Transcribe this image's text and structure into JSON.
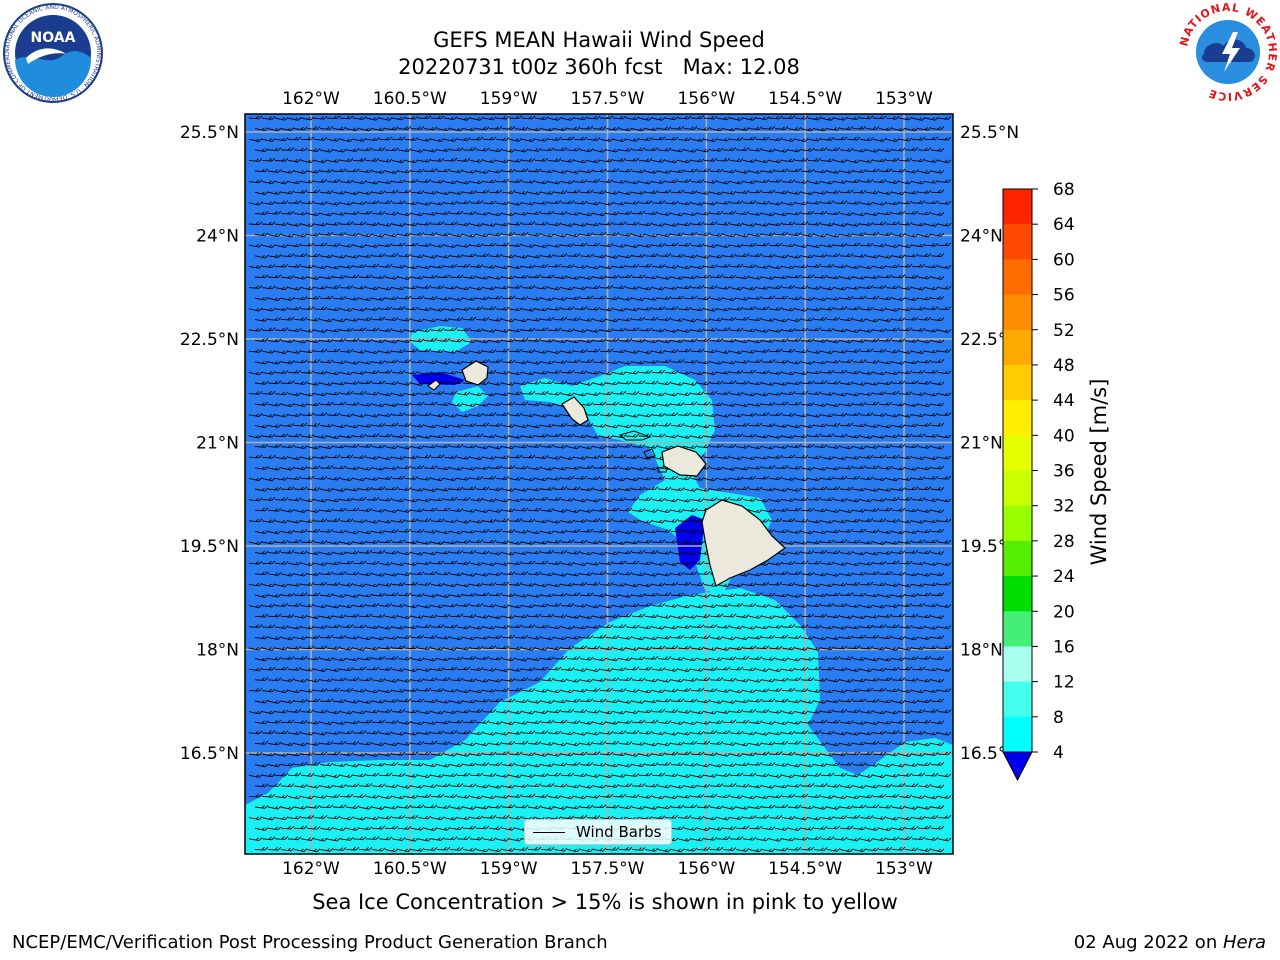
{
  "header": {
    "title_line1": "GEFS MEAN Hawaii Wind Speed",
    "title_line2": "20220731 t00z 360h fcst   Max: 12.08"
  },
  "logos": {
    "left_text": "NOAA",
    "left_ring": "NATIONAL OCEANIC AND ATMOSPHERIC ADMINISTRATION · U.S. DEPARTMENT OF COMMERCE",
    "right_ring": "NATIONAL WEATHER SERVICE"
  },
  "map": {
    "lon_labels": [
      "162°W",
      "160.5°W",
      "159°W",
      "157.5°W",
      "156°W",
      "154.5°W",
      "153°W"
    ],
    "lat_labels": [
      "25.5°N",
      "24°N",
      "22.5°N",
      "21°N",
      "19.5°N",
      "18°N",
      "16.5°N"
    ],
    "lon_values": [
      -162,
      -160.5,
      -159,
      -157.5,
      -156,
      -154.5,
      -153
    ],
    "lat_values": [
      25.5,
      24,
      22.5,
      21,
      19.5,
      18,
      16.5
    ],
    "ocean_color": "#2a7cf2",
    "light_color": "#19f1f4",
    "dark_color": "#0000ee",
    "land_color": "#ebe8dc",
    "grid_color": "#b0b0b0",
    "legend_label": "Wind Barbs"
  },
  "colorbar": {
    "label": "Wind Speed [m/s]",
    "ticks": [
      "68",
      "64",
      "60",
      "56",
      "52",
      "48",
      "44",
      "40",
      "36",
      "32",
      "28",
      "24",
      "20",
      "16",
      "12",
      "8",
      "4"
    ],
    "colors": [
      "#ff0000",
      "#ff2400",
      "#ff4800",
      "#ff6c00",
      "#ff8c00",
      "#ffaa00",
      "#ffcc00",
      "#ffee00",
      "#e6ff00",
      "#ccff00",
      "#99ff00",
      "#55ee00",
      "#00dd00",
      "#44ee77",
      "#aaffee",
      "#44ffee",
      "#00ffff",
      "#0077ff"
    ],
    "under_color": "#0000ee"
  },
  "caption": "Sea Ice Concentration > 15% is shown in pink to yellow",
  "footer": {
    "left": "NCEP/EMC/Verification Post Processing Product Generation Branch",
    "right_prefix": "02 Aug 2022 on ",
    "right_host": "Hera"
  }
}
